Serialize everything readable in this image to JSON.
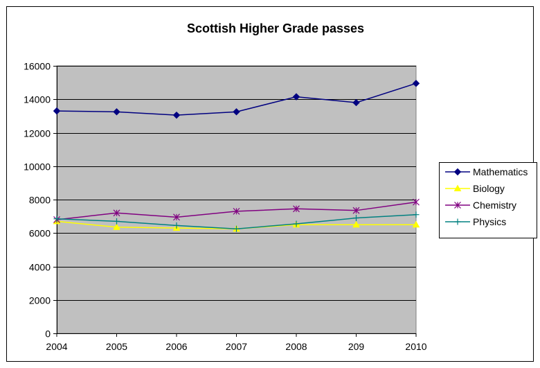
{
  "chart_data": {
    "type": "line",
    "title": "Scottish Higher Grade passes",
    "xlabel": "",
    "ylabel": "",
    "categories": [
      "2004",
      "2005",
      "2006",
      "2007",
      "2008",
      "209",
      "2010"
    ],
    "ylim": [
      0,
      16000
    ],
    "yticks": [
      0,
      2000,
      4000,
      6000,
      8000,
      10000,
      12000,
      14000,
      16000
    ],
    "grid": true,
    "plot_background": "#c0c0c0",
    "legend_position": "right",
    "series": [
      {
        "name": "Mathematics",
        "color": "#000080",
        "marker": "diamond",
        "values": [
          13300,
          13250,
          13050,
          13250,
          14150,
          13800,
          14950
        ]
      },
      {
        "name": "Biology",
        "color": "#ffff00",
        "marker": "triangle",
        "values": [
          6700,
          6350,
          6300,
          6250,
          6500,
          6500,
          6500
        ]
      },
      {
        "name": "Chemistry",
        "color": "#800080",
        "marker": "star",
        "values": [
          6800,
          7200,
          6950,
          7300,
          7450,
          7350,
          7850
        ]
      },
      {
        "name": "Physics",
        "color": "#008080",
        "marker": "plus",
        "values": [
          6850,
          6700,
          6450,
          6250,
          6550,
          6900,
          7100
        ]
      }
    ]
  }
}
